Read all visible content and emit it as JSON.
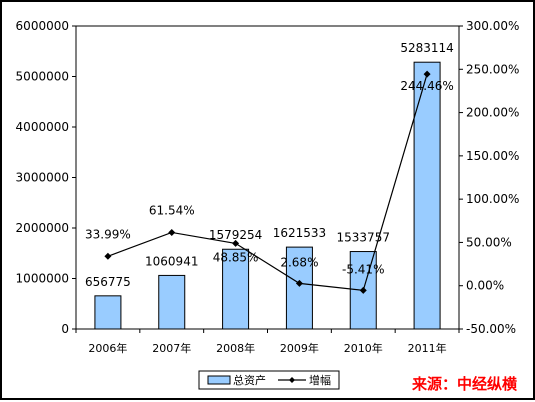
{
  "chart_data": {
    "type": "bar",
    "categories": [
      "2006年",
      "2007年",
      "2008年",
      "2009年",
      "2010年",
      "2011年"
    ],
    "series": [
      {
        "name": "总资产",
        "type": "bar",
        "axis": "left",
        "values": [
          656775,
          1060941,
          1579254,
          1621533,
          1533757,
          5283114
        ],
        "labels": [
          "656775",
          "1060941",
          "1579254",
          "1621533",
          "1533757",
          "5283114"
        ],
        "color": "#99CCFF"
      },
      {
        "name": "增幅",
        "type": "line",
        "axis": "right",
        "values": [
          33.99,
          61.54,
          48.85,
          2.68,
          -5.41,
          244.46
        ],
        "labels": [
          "33.99%",
          "61.54%",
          "48.85%",
          "2.68%",
          "-5.41%",
          "244.46%"
        ],
        "color": "#000000"
      }
    ],
    "y_left": {
      "ylim": [
        0,
        6000000
      ],
      "ticks": [
        "0",
        "1000000",
        "2000000",
        "3000000",
        "4000000",
        "5000000",
        "6000000"
      ]
    },
    "y_right": {
      "ylim": [
        -50,
        300
      ],
      "ticks": [
        "-50.00%",
        "0.00%",
        "50.00%",
        "100.00%",
        "150.00%",
        "200.00%",
        "250.00%",
        "300.00%"
      ]
    },
    "grid": false,
    "legend_position": "bottom"
  },
  "source_text": "来源：中经纵横",
  "colors": {
    "bar_fill": "#99CCFF",
    "bar_stroke": "#000000",
    "line": "#000000",
    "source": "#FF0000"
  }
}
